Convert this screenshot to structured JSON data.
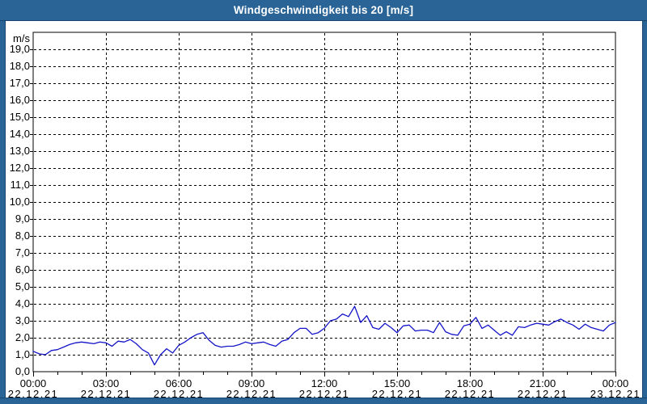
{
  "window": {
    "title": "Windgeschwindigkeit bis 20 [m/s]"
  },
  "colors": {
    "titlebar_bg": "#2A6496",
    "frame_line": "#16466F",
    "title_text": "#FFFFFF",
    "plot_background": "#FFFFFF",
    "grid_and_axis": "#000000",
    "series_line": "#1414C8",
    "label_text": "#000000"
  },
  "chart_data": {
    "type": "line",
    "title": "Windgeschwindigkeit bis 20 [m/s]",
    "ylabel": "m/s",
    "xlabel": "",
    "ylim": [
      0,
      20
    ],
    "grid": "dashed",
    "legend": "none",
    "y_tick_step": 1.0,
    "y_tick_labels": [
      "0,0",
      "1,0",
      "2,0",
      "3,0",
      "4,0",
      "5,0",
      "6,0",
      "7,0",
      "8,0",
      "9,0",
      "10,0",
      "11,0",
      "12,0",
      "13,0",
      "14,0",
      "15,0",
      "16,0",
      "17,0",
      "18,0",
      "19,0"
    ],
    "x_axis": {
      "start_hour": 0,
      "end_hour": 24,
      "minor_tick_hours": 1,
      "major_tick_hours": 3,
      "major_ticks": [
        {
          "hour": 0,
          "time": "00:00",
          "date": "22.12.21"
        },
        {
          "hour": 3,
          "time": "03:00",
          "date": "22.12.21"
        },
        {
          "hour": 6,
          "time": "06:00",
          "date": "22.12.21"
        },
        {
          "hour": 9,
          "time": "09:00",
          "date": "22.12.21"
        },
        {
          "hour": 12,
          "time": "12:00",
          "date": "22.12.21"
        },
        {
          "hour": 15,
          "time": "15:00",
          "date": "22.12.21"
        },
        {
          "hour": 18,
          "time": "18:00",
          "date": "22.12.21"
        },
        {
          "hour": 21,
          "time": "21:00",
          "date": "22.12.21"
        },
        {
          "hour": 24,
          "time": "00:00",
          "date": "23.12.21"
        }
      ]
    },
    "series": [
      {
        "name": "Windgeschwindigkeit",
        "unit": "m/s",
        "color": "#1414C8",
        "sample_step_hours": 0.25,
        "start_hour": 0,
        "values": [
          1.2,
          1.05,
          1.0,
          1.25,
          1.3,
          1.45,
          1.6,
          1.7,
          1.75,
          1.7,
          1.65,
          1.75,
          1.7,
          1.5,
          1.8,
          1.75,
          1.9,
          1.65,
          1.3,
          1.1,
          0.4,
          1.0,
          1.35,
          1.1,
          1.55,
          1.75,
          2.0,
          2.2,
          2.3,
          1.85,
          1.55,
          1.45,
          1.5,
          1.5,
          1.6,
          1.75,
          1.65,
          1.7,
          1.75,
          1.6,
          1.5,
          1.8,
          1.9,
          2.3,
          2.55,
          2.55,
          2.2,
          2.3,
          2.55,
          3.0,
          3.1,
          3.4,
          3.25,
          3.85,
          2.9,
          3.3,
          2.6,
          2.5,
          2.85,
          2.6,
          2.3,
          2.7,
          2.75,
          2.4,
          2.45,
          2.45,
          2.3,
          2.9,
          2.35,
          2.2,
          2.15,
          2.7,
          2.8,
          3.2,
          2.55,
          2.75,
          2.45,
          2.15,
          2.35,
          2.15,
          2.65,
          2.6,
          2.75,
          2.85,
          2.8,
          2.75,
          2.95,
          3.1,
          2.9,
          2.75,
          2.5,
          2.8,
          2.6,
          2.5,
          2.4,
          2.75,
          2.9
        ]
      }
    ]
  }
}
